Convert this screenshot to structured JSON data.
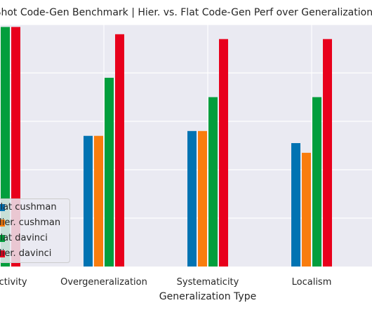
{
  "chart_data": {
    "type": "bar",
    "title": "Zero-Shot Code-Gen Benchmark | Hier. vs. Flat Code-Gen Perf over Generalization Types",
    "xlabel": "Generalization Type",
    "ylabel": "",
    "categories": [
      "Productivity",
      "Overgeneralization",
      "Systematicity",
      "Localism"
    ],
    "ylim": [
      0,
      1.0
    ],
    "grid": true,
    "legend_position": "lower-left",
    "series": [
      {
        "name": "Flat cushman",
        "color": "#0173b2",
        "values": [
          0.99,
          0.54,
          0.56,
          0.51
        ]
      },
      {
        "name": "Hier. cushman",
        "color": "#f97d0e",
        "values": [
          0.99,
          0.54,
          0.56,
          0.47
        ]
      },
      {
        "name": "Flat davinci",
        "color": "#029e3d",
        "values": [
          0.99,
          0.78,
          0.7,
          0.7
        ]
      },
      {
        "name": "Hier. davinci",
        "color": "#e8001c",
        "values": [
          0.99,
          0.96,
          0.94,
          0.94
        ]
      }
    ]
  },
  "style": {
    "plot_background": "#eaeaf2",
    "grid_color": "#ffffff"
  }
}
